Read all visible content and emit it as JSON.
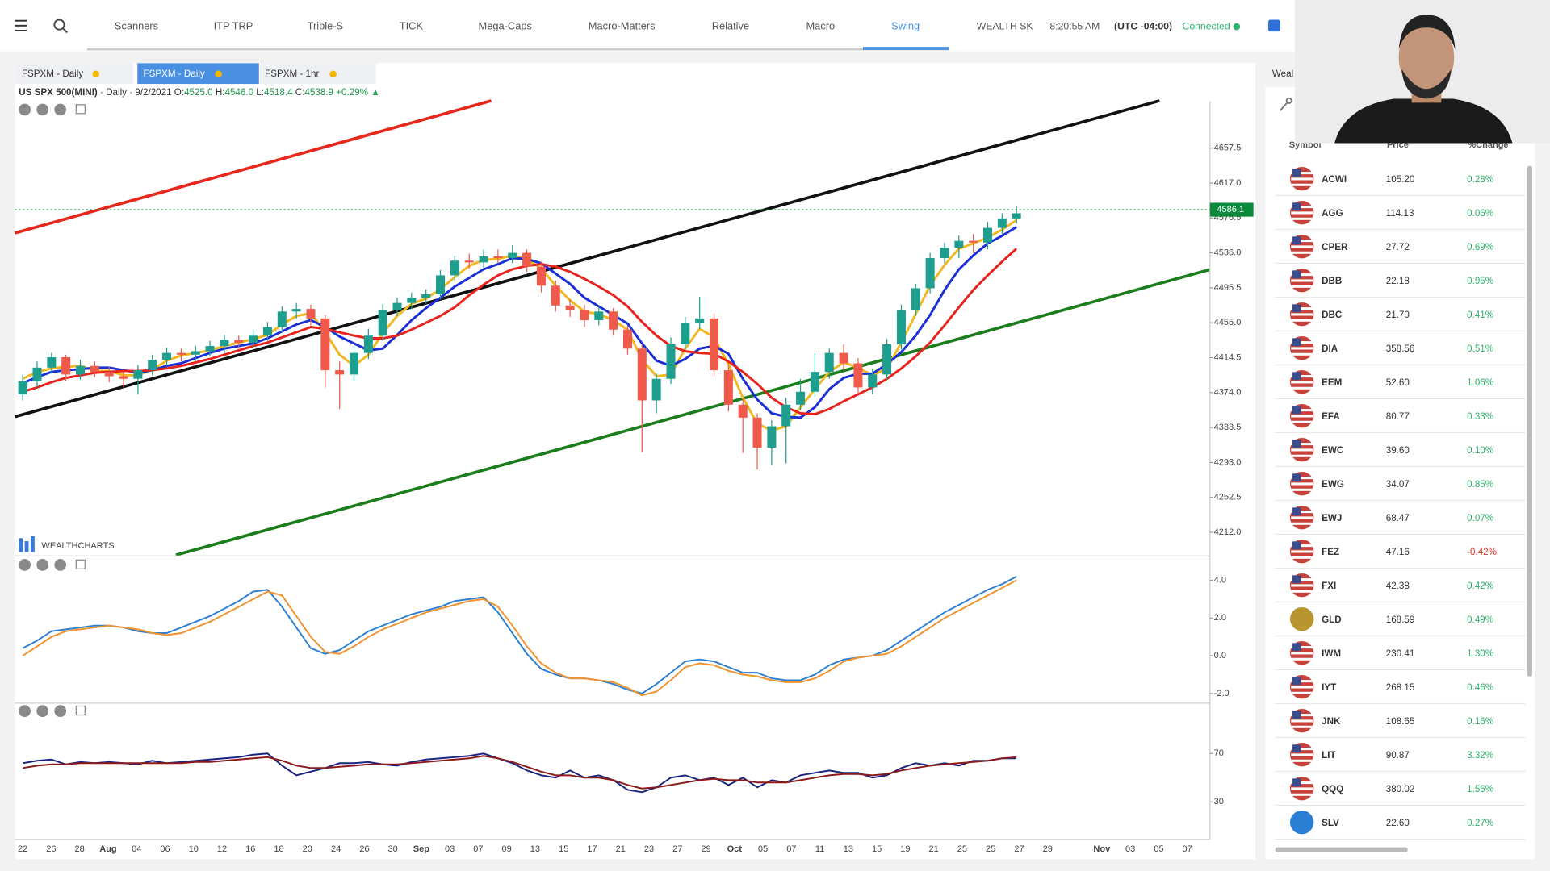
{
  "nav": {
    "tabs": [
      "Scanners",
      "ITP TRP",
      "Triple-S",
      "TICK",
      "Mega-Caps",
      "Macro-Matters",
      "Relative",
      "Macro",
      "Swing"
    ],
    "status": {
      "account": "WEALTH SK",
      "time": "8:20:55 AM",
      "timezone": "(UTC -04:00)",
      "connection": "Connected"
    }
  },
  "chart_tabs": [
    "FSPXM - Daily",
    "FSPXM - Daily",
    "FSPXM - 1hr"
  ],
  "legend": {
    "symbol": "US SPX 500(MINI)",
    "interval": "· Daily · 9/2/2021",
    "o_label": "O:",
    "open": "4525.0",
    "h_label": "H:",
    "high": "4546.0",
    "l_label": "L:",
    "low": "4518.4",
    "c_label": "C:",
    "close": "4538.9",
    "change": "+0.29%"
  },
  "logo": "WEALTHCHARTS",
  "chart_data": [
    {
      "type": "candlestick",
      "up_color": "#1e9e8e",
      "down_color": "#ef5a4a",
      "ylim": [
        4185.7,
        4712.5
      ],
      "yticks": [
        4657.5,
        {
          "value": 4617,
          "label": "4617.0"
        },
        4576.5,
        {
          "value": 4536,
          "label": "4536.0"
        },
        4495.5,
        {
          "value": 4455,
          "label": "4455.0"
        },
        4414.5,
        {
          "value": 4374,
          "label": "4374.0"
        },
        4333.5,
        {
          "value": 4293,
          "label": "4293.0"
        },
        4252.5,
        {
          "value": 4212,
          "label": "4212.0"
        }
      ],
      "last_price": 4586.1,
      "last_price_color": "#0a8a3a",
      "x_labels": [
        "22",
        "26",
        "28",
        "Aug",
        "04",
        "06",
        "10",
        "12",
        "16",
        "18",
        "20",
        "24",
        "26",
        "30",
        "Sep",
        "03",
        "07",
        "09",
        "13",
        "15",
        "17",
        "21",
        "23",
        "27",
        "29",
        "Oct",
        "05",
        "07",
        "11",
        "13",
        "15",
        "19",
        "21",
        "25",
        "25",
        "27",
        "29",
        "Nov",
        "03",
        "05",
        "07"
      ],
      "candles": [
        [
          4372,
          4395,
          4365,
          4387
        ],
        [
          4387,
          4410,
          4380,
          4403
        ],
        [
          4403,
          4420,
          4396,
          4415
        ],
        [
          4415,
          4418,
          4388,
          4395
        ],
        [
          4395,
          4412,
          4389,
          4405
        ],
        [
          4405,
          4410,
          4392,
          4398
        ],
        [
          4398,
          4404,
          4386,
          4393
        ],
        [
          4393,
          4398,
          4380,
          4390
        ],
        [
          4390,
          4406,
          4372,
          4400
        ],
        [
          4400,
          4418,
          4394,
          4412
        ],
        [
          4412,
          4426,
          4405,
          4420
        ],
        [
          4420,
          4425,
          4410,
          4418
        ],
        [
          4418,
          4428,
          4411,
          4422
        ],
        [
          4422,
          4434,
          4416,
          4428
        ],
        [
          4428,
          4441,
          4420,
          4435
        ],
        [
          4435,
          4440,
          4425,
          4432
        ],
        [
          4432,
          4446,
          4426,
          4440
        ],
        [
          4440,
          4456,
          4434,
          4450
        ],
        [
          4450,
          4474,
          4444,
          4468
        ],
        [
          4468,
          4478,
          4460,
          4471
        ],
        [
          4471,
          4476,
          4452,
          4460
        ],
        [
          4460,
          4464,
          4380,
          4400
        ],
        [
          4400,
          4410,
          4355,
          4395
        ],
        [
          4395,
          4428,
          4388,
          4420
        ],
        [
          4420,
          4448,
          4413,
          4440
        ],
        [
          4440,
          4477,
          4434,
          4470
        ],
        [
          4470,
          4484,
          4463,
          4478
        ],
        [
          4478,
          4490,
          4471,
          4484
        ],
        [
          4484,
          4494,
          4477,
          4488
        ],
        [
          4488,
          4516,
          4482,
          4510
        ],
        [
          4510,
          4533,
          4504,
          4527
        ],
        [
          4527,
          4535,
          4518,
          4525
        ],
        [
          4525,
          4540,
          4519,
          4532
        ],
        [
          4532,
          4540,
          4524,
          4530
        ],
        [
          4530,
          4545,
          4524,
          4536
        ],
        [
          4536,
          4540,
          4514,
          4520
        ],
        [
          4520,
          4526,
          4490,
          4498
        ],
        [
          4498,
          4504,
          4468,
          4475
        ],
        [
          4475,
          4482,
          4462,
          4470
        ],
        [
          4470,
          4476,
          4450,
          4458
        ],
        [
          4458,
          4475,
          4452,
          4468
        ],
        [
          4468,
          4472,
          4440,
          4447
        ],
        [
          4447,
          4452,
          4418,
          4425
        ],
        [
          4425,
          4430,
          4305,
          4365
        ],
        [
          4365,
          4396,
          4350,
          4390
        ],
        [
          4390,
          4438,
          4384,
          4430
        ],
        [
          4430,
          4462,
          4424,
          4455
        ],
        [
          4455,
          4485,
          4448,
          4460
        ],
        [
          4460,
          4466,
          4393,
          4400
        ],
        [
          4400,
          4406,
          4352,
          4360
        ],
        [
          4360,
          4368,
          4304,
          4345
        ],
        [
          4345,
          4350,
          4285,
          4310
        ],
        [
          4310,
          4342,
          4290,
          4335
        ],
        [
          4335,
          4368,
          4292,
          4360
        ],
        [
          4360,
          4390,
          4354,
          4375
        ],
        [
          4375,
          4420,
          4369,
          4398
        ],
        [
          4398,
          4425,
          4390,
          4420
        ],
        [
          4420,
          4430,
          4400,
          4408
        ],
        [
          4408,
          4414,
          4374,
          4380
        ],
        [
          4380,
          4402,
          4372,
          4395
        ],
        [
          4395,
          4436,
          4389,
          4430
        ],
        [
          4430,
          4476,
          4424,
          4470
        ],
        [
          4470,
          4500,
          4463,
          4495
        ],
        [
          4495,
          4536,
          4489,
          4530
        ],
        [
          4530,
          4548,
          4524,
          4542
        ],
        [
          4542,
          4556,
          4530,
          4550
        ],
        [
          4550,
          4558,
          4536,
          4548
        ],
        [
          4548,
          4572,
          4540,
          4565
        ],
        [
          4565,
          4582,
          4558,
          4576
        ],
        [
          4576,
          4590,
          4570,
          4582
        ]
      ],
      "lines": [
        {
          "color": "#f2b822",
          "values": [
            4390,
            4398,
            4402,
            4404,
            4405,
            4399,
            4399,
            4394,
            4394,
            4401,
            4411,
            4417,
            4420,
            4423,
            4428,
            4432,
            4436,
            4441,
            4453,
            4463,
            4466,
            4444,
            4418,
            4405,
            4418,
            4443,
            4463,
            4477,
            4483,
            4494,
            4508,
            4521,
            4528,
            4529,
            4533,
            4529,
            4518,
            4498,
            4481,
            4468,
            4465,
            4458,
            4447,
            4412,
            4393,
            4395,
            4425,
            4448,
            4438,
            4407,
            4368,
            4338,
            4330,
            4335,
            4357,
            4378,
            4398,
            4409,
            4403,
            4394,
            4402,
            4432,
            4465,
            4498,
            4522,
            4541,
            4547,
            4554,
            4563,
            4574
          ]
        },
        {
          "color": "#1a2fd6",
          "values": [
            4385,
            4392,
            4398,
            4400,
            4401,
            4403,
            4403,
            4400,
            4397,
            4400,
            4405,
            4408,
            4414,
            4420,
            4425,
            4428,
            4431,
            4437,
            4445,
            4453,
            4458,
            4450,
            4439,
            4431,
            4423,
            4425,
            4441,
            4458,
            4472,
            4484,
            4497,
            4507,
            4517,
            4523,
            4530,
            4529,
            4524,
            4512,
            4500,
            4484,
            4474,
            4464,
            4454,
            4431,
            4411,
            4405,
            4413,
            4425,
            4428,
            4419,
            4390,
            4366,
            4350,
            4346,
            4345,
            4357,
            4378,
            4391,
            4396,
            4396,
            4407,
            4421,
            4440,
            4464,
            4493,
            4517,
            4533,
            4547,
            4556,
            4566
          ]
        },
        {
          "color": "#e8221c",
          "values": [
            4375,
            4380,
            4386,
            4391,
            4394,
            4397,
            4398,
            4399,
            4399,
            4400,
            4402,
            4405,
            4409,
            4413,
            4418,
            4423,
            4428,
            4432,
            4438,
            4444,
            4450,
            4448,
            4444,
            4440,
            4437,
            4437,
            4440,
            4447,
            4455,
            4463,
            4473,
            4487,
            4499,
            4510,
            4517,
            4521,
            4523,
            4520,
            4514,
            4506,
            4497,
            4487,
            4474,
            4456,
            4440,
            4428,
            4422,
            4420,
            4419,
            4410,
            4398,
            4384,
            4368,
            4357,
            4350,
            4349,
            4355,
            4364,
            4372,
            4380,
            4390,
            4402,
            4416,
            4432,
            4452,
            4473,
            4493,
            4510,
            4526,
            4541
          ]
        }
      ]
    },
    {
      "type": "line",
      "ylim": [
        -2.46,
        5.29
      ],
      "yticks": [
        {
          "value": 4,
          "label": "4.0"
        },
        {
          "value": 2,
          "label": "2.0"
        },
        {
          "value": 0,
          "label": "0.0"
        },
        {
          "value": -2,
          "label": "-2.0"
        }
      ],
      "series": [
        {
          "color": "#2f7fd0",
          "values": [
            0.4,
            0.8,
            1.3,
            1.4,
            1.5,
            1.6,
            1.6,
            1.5,
            1.3,
            1.2,
            1.2,
            1.5,
            1.8,
            2.1,
            2.5,
            2.9,
            3.4,
            3.5,
            2.6,
            1.5,
            0.4,
            0.1,
            0.3,
            0.8,
            1.3,
            1.6,
            1.9,
            2.2,
            2.4,
            2.6,
            2.9,
            3.0,
            3.1,
            2.3,
            1.2,
            0.1,
            -0.7,
            -1.0,
            -1.2,
            -1.2,
            -1.3,
            -1.5,
            -1.8,
            -2.0,
            -1.5,
            -0.9,
            -0.3,
            -0.2,
            -0.3,
            -0.6,
            -0.9,
            -0.9,
            -1.2,
            -1.3,
            -1.3,
            -1.0,
            -0.5,
            -0.2,
            -0.1,
            0.0,
            0.3,
            0.8,
            1.3,
            1.8,
            2.3,
            2.7,
            3.1,
            3.5,
            3.8,
            4.2
          ]
        },
        {
          "color": "#f0922e",
          "values": [
            0.0,
            0.5,
            1.0,
            1.3,
            1.4,
            1.5,
            1.6,
            1.5,
            1.4,
            1.2,
            1.1,
            1.2,
            1.5,
            1.8,
            2.2,
            2.6,
            3.0,
            3.4,
            3.2,
            2.1,
            1.0,
            0.2,
            0.1,
            0.5,
            1.0,
            1.4,
            1.7,
            2.0,
            2.3,
            2.5,
            2.7,
            2.9,
            3.0,
            2.6,
            1.6,
            0.5,
            -0.4,
            -0.9,
            -1.2,
            -1.2,
            -1.3,
            -1.4,
            -1.7,
            -2.1,
            -1.9,
            -1.3,
            -0.6,
            -0.4,
            -0.5,
            -0.8,
            -1.0,
            -1.1,
            -1.3,
            -1.4,
            -1.4,
            -1.2,
            -0.8,
            -0.3,
            -0.1,
            0.0,
            0.1,
            0.5,
            1.0,
            1.5,
            2.0,
            2.4,
            2.8,
            3.2,
            3.6,
            4.0
          ]
        }
      ]
    },
    {
      "type": "line",
      "ylim": [
        -1,
        110.8
      ],
      "yticks": [
        70,
        30
      ],
      "series": [
        {
          "color": "#1a237e",
          "values": [
            62,
            64,
            65,
            61,
            63,
            62,
            63,
            62,
            61,
            64,
            62,
            63,
            64,
            65,
            66,
            67,
            69,
            70,
            60,
            52,
            55,
            58,
            62,
            62,
            63,
            61,
            60,
            63,
            65,
            66,
            67,
            68,
            70,
            66,
            62,
            56,
            52,
            50,
            56,
            50,
            52,
            48,
            40,
            38,
            42,
            50,
            52,
            48,
            50,
            44,
            50,
            42,
            48,
            46,
            52,
            54,
            56,
            54,
            54,
            50,
            52,
            58,
            62,
            60,
            62,
            60,
            64,
            64,
            66,
            66
          ]
        },
        {
          "color": "#8b1a1a",
          "values": [
            58,
            60,
            61,
            61,
            62,
            62,
            62,
            62,
            62,
            62,
            62,
            62,
            63,
            63,
            64,
            65,
            66,
            67,
            64,
            60,
            58,
            58,
            59,
            60,
            61,
            61,
            61,
            62,
            63,
            64,
            65,
            66,
            68,
            66,
            63,
            59,
            55,
            52,
            52,
            50,
            50,
            48,
            44,
            41,
            42,
            44,
            46,
            48,
            49,
            48,
            48,
            46,
            46,
            46,
            48,
            50,
            52,
            53,
            53,
            52,
            53,
            56,
            58,
            60,
            61,
            62,
            63,
            64,
            66,
            67
          ]
        }
      ]
    }
  ],
  "watchlist": {
    "title": "Weal",
    "columns": [
      "Symbol",
      "Price",
      "%Change"
    ],
    "rows": [
      [
        "ACWI",
        "105.20",
        "0.28%"
      ],
      [
        "AGG",
        "114.13",
        "0.06%"
      ],
      [
        "CPER",
        "27.72",
        "0.69%"
      ],
      [
        "DBB",
        "22.18",
        "0.95%"
      ],
      [
        "DBC",
        "21.70",
        "0.41%"
      ],
      [
        "DIA",
        "358.56",
        "0.51%"
      ],
      [
        "EEM",
        "52.60",
        "1.06%"
      ],
      [
        "EFA",
        "80.77",
        "0.33%"
      ],
      [
        "EWC",
        "39.60",
        "0.10%"
      ],
      [
        "EWG",
        "34.07",
        "0.85%"
      ],
      [
        "EWJ",
        "68.47",
        "0.07%"
      ],
      [
        "FEZ",
        "47.16",
        "-0.42%"
      ],
      [
        "FXI",
        "42.38",
        "0.42%"
      ],
      [
        "GLD",
        "168.59",
        "0.49%"
      ],
      [
        "IWM",
        "230.41",
        "1.30%"
      ],
      [
        "IYT",
        "268.15",
        "0.46%"
      ],
      [
        "JNK",
        "108.65",
        "0.16%"
      ],
      [
        "LIT",
        "90.87",
        "3.32%"
      ],
      [
        "QQQ",
        "380.02",
        "1.56%"
      ],
      [
        "SLV",
        "22.60",
        "0.27%"
      ]
    ]
  }
}
